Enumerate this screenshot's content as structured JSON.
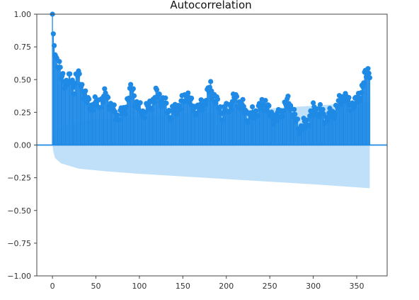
{
  "chart_data": {
    "type": "stem",
    "title": "Autocorrelation",
    "xlabel": "",
    "ylabel": "",
    "xlim": [
      -18,
      385
    ],
    "ylim": [
      -1.0,
      1.0
    ],
    "xticks": [
      0,
      50,
      100,
      150,
      200,
      250,
      300,
      350
    ],
    "yticks": [
      -1.0,
      -0.75,
      -0.5,
      -0.25,
      0.0,
      0.25,
      0.5,
      0.75,
      1.0
    ],
    "ytick_labels": [
      "−1.00",
      "−0.75",
      "−0.50",
      "−0.25",
      "0.00",
      "0.25",
      "0.50",
      "0.75",
      "1.00"
    ],
    "n_lags": 365,
    "grid": false,
    "acf_keypoints": [
      [
        0,
        1.0
      ],
      [
        1,
        0.85
      ],
      [
        2,
        0.76
      ],
      [
        3,
        0.69
      ],
      [
        5,
        0.66
      ],
      [
        8,
        0.6
      ],
      [
        10,
        0.52
      ],
      [
        15,
        0.48
      ],
      [
        20,
        0.5
      ],
      [
        25,
        0.45
      ],
      [
        28,
        0.55
      ],
      [
        33,
        0.47
      ],
      [
        40,
        0.33
      ],
      [
        45,
        0.3
      ],
      [
        52,
        0.32
      ],
      [
        58,
        0.35
      ],
      [
        62,
        0.39
      ],
      [
        68,
        0.28
      ],
      [
        75,
        0.22
      ],
      [
        82,
        0.25
      ],
      [
        88,
        0.38
      ],
      [
        92,
        0.44
      ],
      [
        97,
        0.3
      ],
      [
        105,
        0.25
      ],
      [
        112,
        0.3
      ],
      [
        120,
        0.39
      ],
      [
        128,
        0.33
      ],
      [
        135,
        0.24
      ],
      [
        142,
        0.27
      ],
      [
        150,
        0.33
      ],
      [
        155,
        0.4
      ],
      [
        160,
        0.3
      ],
      [
        168,
        0.27
      ],
      [
        175,
        0.33
      ],
      [
        182,
        0.45
      ],
      [
        188,
        0.33
      ],
      [
        195,
        0.25
      ],
      [
        202,
        0.28
      ],
      [
        210,
        0.36
      ],
      [
        218,
        0.3
      ],
      [
        225,
        0.22
      ],
      [
        232,
        0.24
      ],
      [
        238,
        0.28
      ],
      [
        245,
        0.33
      ],
      [
        250,
        0.23
      ],
      [
        258,
        0.2
      ],
      [
        265,
        0.27
      ],
      [
        272,
        0.34
      ],
      [
        278,
        0.22
      ],
      [
        285,
        0.13
      ],
      [
        292,
        0.16
      ],
      [
        300,
        0.27
      ],
      [
        308,
        0.26
      ],
      [
        315,
        0.2
      ],
      [
        322,
        0.24
      ],
      [
        328,
        0.3
      ],
      [
        335,
        0.38
      ],
      [
        340,
        0.32
      ],
      [
        348,
        0.31
      ],
      [
        355,
        0.41
      ],
      [
        360,
        0.53
      ],
      [
        363,
        0.57
      ],
      [
        365,
        0.57
      ]
    ],
    "confint_upper_keypoints": [
      [
        0,
        0.0
      ],
      [
        1,
        0.05
      ],
      [
        3,
        0.1
      ],
      [
        10,
        0.14
      ],
      [
        30,
        0.18
      ],
      [
        60,
        0.2
      ],
      [
        100,
        0.22
      ],
      [
        150,
        0.24
      ],
      [
        200,
        0.26
      ],
      [
        250,
        0.28
      ],
      [
        300,
        0.3
      ],
      [
        365,
        0.33
      ]
    ],
    "colors": {
      "stem": "#1f8ae6",
      "marker": "#1f8ae6",
      "baseline": "#1f8ae6",
      "confint": "#bfe0f8",
      "axes": "#444444"
    }
  }
}
